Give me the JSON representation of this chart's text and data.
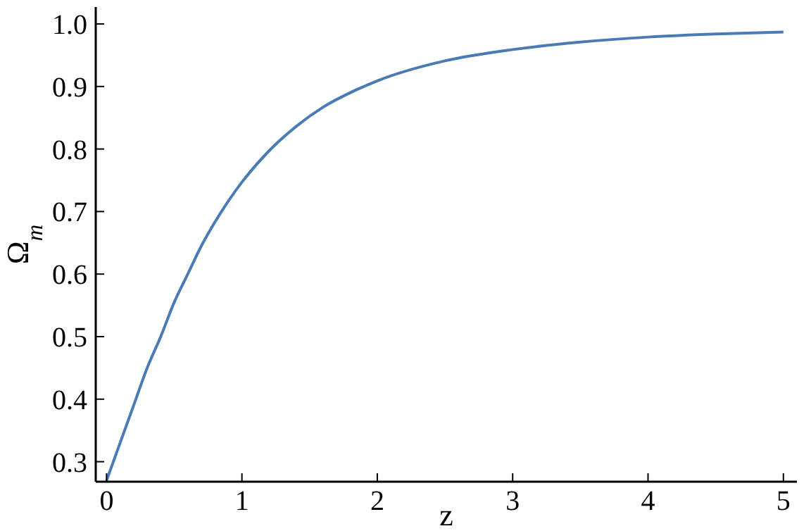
{
  "chart_data": {
    "type": "line",
    "xlabel": "z",
    "ylabel": "Ω$_{m}$",
    "x": [
      0,
      0.1,
      0.2,
      0.3,
      0.4,
      0.5,
      0.6,
      0.7,
      0.8,
      0.9,
      1,
      1.2,
      1.4,
      1.6,
      1.8,
      2,
      2.5,
      3,
      3.5,
      4,
      4.5,
      5
    ],
    "series": [
      {
        "color": "#4a7bb7",
        "values": [
          0.27,
          0.33,
          0.39,
          0.45,
          0.5,
          0.555,
          0.6,
          0.645,
          0.683,
          0.717,
          0.747,
          0.797,
          0.836,
          0.867,
          0.89,
          0.909,
          0.941,
          0.959,
          0.971,
          0.979,
          0.984,
          0.987
        ]
      }
    ],
    "xlim": [
      -0.08,
      5.1
    ],
    "ylim": [
      0.268,
      1.027
    ],
    "xticks": [
      0,
      1,
      2,
      3,
      4,
      5
    ],
    "yticks": [
      0.3,
      0.4,
      0.5,
      0.6,
      0.7,
      0.8,
      0.9,
      {
        "value": 1,
        "label": "1.0"
      }
    ],
    "grid": false,
    "marker": "none",
    "line_style": "solid"
  }
}
